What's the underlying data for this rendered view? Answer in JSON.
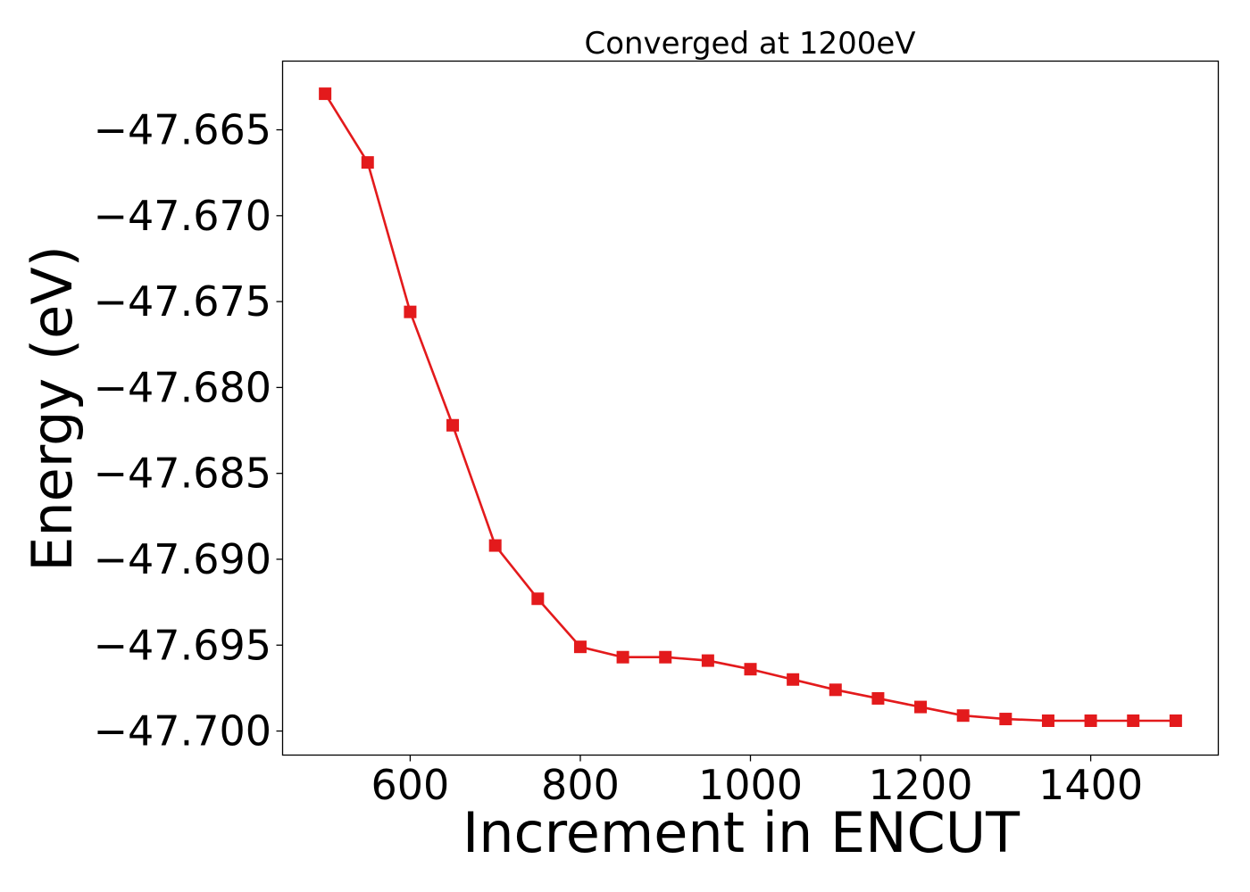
{
  "chart_data": {
    "type": "line",
    "title": "Converged at 1200eV",
    "xlabel": "Increment in ENCUT",
    "ylabel": "Energy (eV)",
    "xlim": [
      450,
      1550
    ],
    "ylim": [
      -47.7014,
      -47.661
    ],
    "xticks": [
      600,
      800,
      1000,
      1200,
      1400
    ],
    "yticks": [
      -47.665,
      -47.67,
      -47.675,
      -47.68,
      -47.685,
      -47.69,
      -47.695,
      -47.7
    ],
    "ytick_labels": [
      "−47.665",
      "−47.670",
      "−47.675",
      "−47.680",
      "−47.685",
      "−47.690",
      "−47.695",
      "−47.700"
    ],
    "grid": false,
    "series": [
      {
        "color": "#e31a1c",
        "marker": "square",
        "x": [
          500,
          550,
          600,
          650,
          700,
          750,
          800,
          850,
          900,
          950,
          1000,
          1050,
          1100,
          1150,
          1200,
          1250,
          1300,
          1350,
          1400,
          1450,
          1500
        ],
        "y": [
          -47.6629,
          -47.6669,
          -47.6756,
          -47.6822,
          -47.6892,
          -47.6923,
          -47.6951,
          -47.6957,
          -47.6957,
          -47.6959,
          -47.6964,
          -47.697,
          -47.6976,
          -47.6981,
          -47.6986,
          -47.6991,
          -47.6993,
          -47.6994,
          -47.6994,
          -47.6994,
          -47.6994
        ]
      }
    ]
  }
}
